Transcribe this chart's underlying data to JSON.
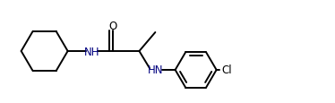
{
  "bg_color": "#ffffff",
  "line_color": "#000000",
  "nh_color": "#000080",
  "cl_color": "#000000",
  "o_color": "#000000",
  "line_width": 1.4,
  "font_size": 8.5,
  "xlim": [
    0,
    10
  ],
  "ylim": [
    0,
    3.1
  ]
}
